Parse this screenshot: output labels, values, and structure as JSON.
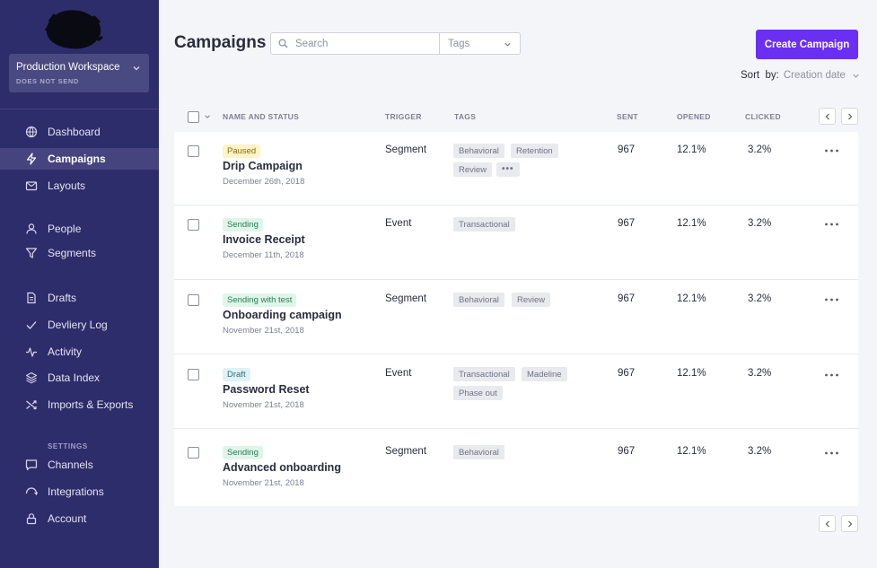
{
  "sidebar": {
    "workspace": {
      "name": "Production Workspace",
      "subtitle": "DOES NOT SEND"
    },
    "items": [
      {
        "label": "Dashboard",
        "icon": "globe-icon"
      },
      {
        "label": "Campaigns",
        "icon": "lightning-icon",
        "active": true
      },
      {
        "label": "Layouts",
        "icon": "mail-icon"
      },
      {
        "label": "People",
        "icon": "person-icon"
      },
      {
        "label": "Segments",
        "icon": "filter-icon"
      },
      {
        "label": "Drafts",
        "icon": "document-icon"
      },
      {
        "label": "Devliery Log",
        "icon": "check-icon"
      },
      {
        "label": "Activity",
        "icon": "pulse-icon"
      },
      {
        "label": "Data Index",
        "icon": "layers-icon"
      },
      {
        "label": "Imports & Exports",
        "icon": "shuffle-icon"
      }
    ],
    "settings_heading": "SETTINGS",
    "settings_items": [
      {
        "label": "Channels",
        "icon": "chat-icon"
      },
      {
        "label": "Integrations",
        "icon": "integration-icon"
      },
      {
        "label": "Account",
        "icon": "lock-icon"
      }
    ]
  },
  "header": {
    "title": "Campaigns",
    "search_placeholder": "Search",
    "tags_placeholder": "Tags",
    "create_button": "Create Campaign",
    "sort_label": "Sort  by:",
    "sort_value": "Creation date"
  },
  "table": {
    "columns": [
      "NAME AND STATUS",
      "TRIGGER",
      "TAGS",
      "SENT",
      "OPENED",
      "CLICKED"
    ],
    "rows": [
      {
        "status": "Paused",
        "status_kind": "paused",
        "name": "Drip Campaign",
        "date": "December 26th, 2018",
        "trigger": "Segment",
        "tags": [
          "Behavioral",
          "Retention",
          "Review"
        ],
        "more_tags": "•••",
        "sent": "967",
        "opened": "12.1%",
        "clicked": "3.2%"
      },
      {
        "status": "Sending",
        "status_kind": "sending",
        "name": "Invoice Receipt",
        "date": "December 11th, 2018",
        "trigger": "Event",
        "tags": [
          "Transactional"
        ],
        "sent": "967",
        "opened": "12.1%",
        "clicked": "3.2%"
      },
      {
        "status": "Sending with test",
        "status_kind": "sending",
        "name": "Onboarding campaign",
        "date": "November 21st, 2018",
        "trigger": "Segment",
        "tags": [
          "Behavioral",
          "Review"
        ],
        "sent": "967",
        "opened": "12.1%",
        "clicked": "3.2%"
      },
      {
        "status": "Draft",
        "status_kind": "draft",
        "name": "Password Reset",
        "date": "November 21st, 2018",
        "trigger": "Event",
        "tags": [
          "Transactional",
          "Madeline",
          "Phase out"
        ],
        "sent": "967",
        "opened": "12.1%",
        "clicked": "3.2%"
      },
      {
        "status": "Sending",
        "status_kind": "sending",
        "name": "Advanced onboarding",
        "date": "November 21st, 2018",
        "trigger": "Segment",
        "tags": [
          "Behavioral"
        ],
        "sent": "967",
        "opened": "12.1%",
        "clicked": "3.2%"
      }
    ]
  },
  "colors": {
    "sidebar": "#2e2d6b",
    "accent": "#6b2ff2"
  }
}
